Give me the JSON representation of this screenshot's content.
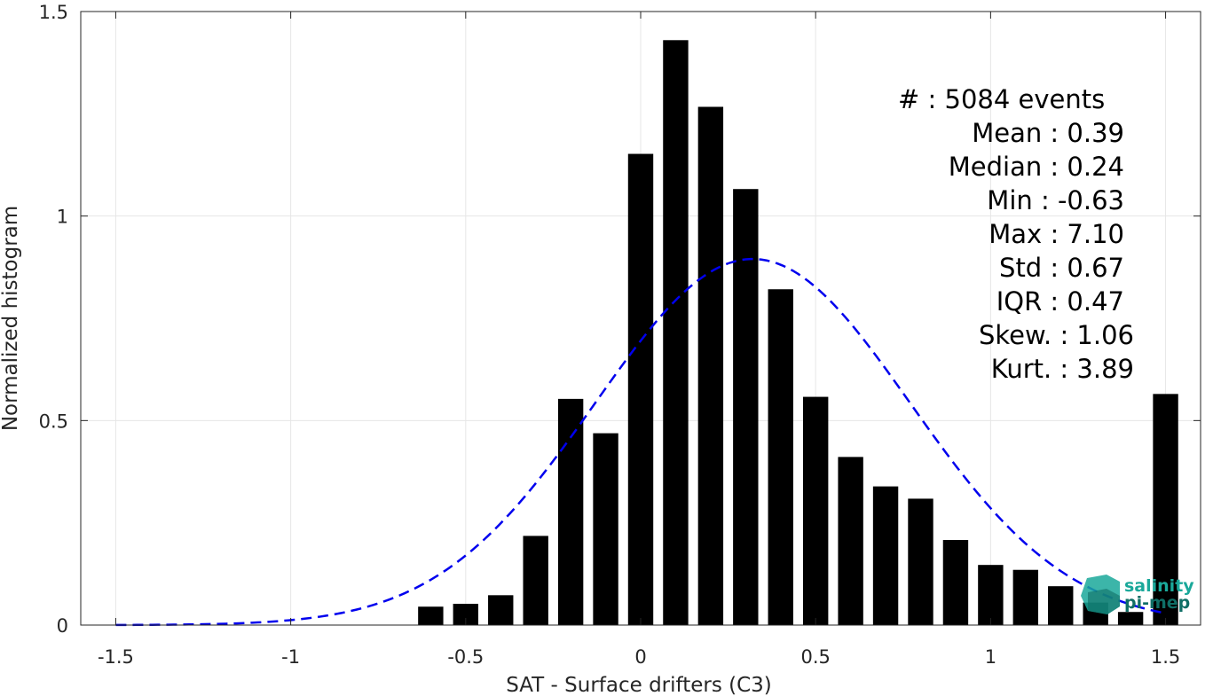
{
  "chart_data": {
    "type": "bar",
    "xlabel": "SAT - Surface drifters (C3)",
    "ylabel": "Normalized histogram",
    "xlim": [
      -1.6,
      1.6
    ],
    "ylim": [
      0,
      1.5
    ],
    "xticks": [
      -1.5,
      -1,
      -0.5,
      0,
      0.5,
      1,
      1.5
    ],
    "xtick_labels": [
      "-1.5",
      "-1",
      "-0.5",
      "0",
      "0.5",
      "1",
      "1.5"
    ],
    "yticks": [
      0,
      0.5,
      1,
      1.5
    ],
    "ytick_labels": [
      "0",
      "0.5",
      "1",
      "1.5"
    ],
    "grid": true,
    "bar_color": "#000000",
    "bins": [
      {
        "x": -0.6,
        "value": 0.045
      },
      {
        "x": -0.5,
        "value": 0.052
      },
      {
        "x": -0.4,
        "value": 0.073
      },
      {
        "x": -0.3,
        "value": 0.218
      },
      {
        "x": -0.2,
        "value": 0.553
      },
      {
        "x": -0.1,
        "value": 0.469
      },
      {
        "x": 0.0,
        "value": 1.152
      },
      {
        "x": 0.1,
        "value": 1.43
      },
      {
        "x": 0.2,
        "value": 1.267
      },
      {
        "x": 0.3,
        "value": 1.066
      },
      {
        "x": 0.4,
        "value": 0.821
      },
      {
        "x": 0.5,
        "value": 0.558
      },
      {
        "x": 0.6,
        "value": 0.411
      },
      {
        "x": 0.7,
        "value": 0.339
      },
      {
        "x": 0.8,
        "value": 0.309
      },
      {
        "x": 0.9,
        "value": 0.208
      },
      {
        "x": 1.0,
        "value": 0.147
      },
      {
        "x": 1.1,
        "value": 0.135
      },
      {
        "x": 1.2,
        "value": 0.095
      },
      {
        "x": 1.3,
        "value": 0.055
      },
      {
        "x": 1.4,
        "value": 0.032
      },
      {
        "x": 1.5,
        "value": 0.565
      }
    ],
    "gaussian_fit": {
      "mean": 0.32,
      "std": 0.45,
      "peak": 0.895,
      "color": "#0000ee",
      "style": "dashed"
    },
    "stats": [
      {
        "text": "#  : 5084 events",
        "anchor": "start"
      },
      {
        "text": "Mean : 0.39",
        "anchor": "end"
      },
      {
        "text": "Median : 0.24",
        "anchor": "end"
      },
      {
        "text": "Min : -0.63",
        "anchor": "end"
      },
      {
        "text": "Max : 7.10",
        "anchor": "end"
      },
      {
        "text": "Std : 0.67",
        "anchor": "end"
      },
      {
        "text": "IQR : 0.47",
        "anchor": "end"
      },
      {
        "text": "Skew. : 1.06",
        "anchor": "end2"
      },
      {
        "text": "Kurt. : 3.89",
        "anchor": "end2"
      }
    ]
  },
  "logo": {
    "line1": "salinity",
    "line2": "pi-mep",
    "color_primary": "#1aa89a",
    "color_secondary": "#0f6e66"
  }
}
